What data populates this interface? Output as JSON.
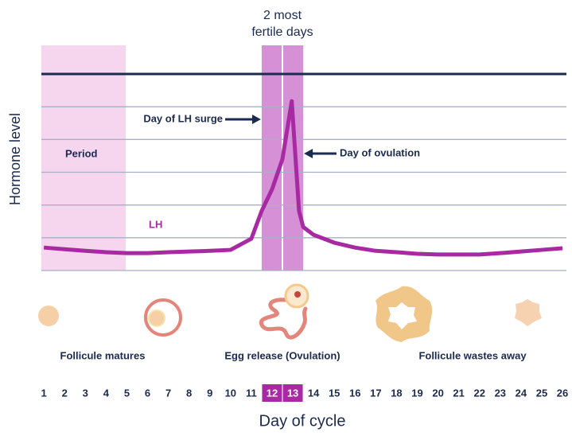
{
  "chart_data": {
    "type": "line",
    "x_axis_label": "Day of cycle",
    "y_axis_label": "Hormone level",
    "xlim": [
      0.88,
      26.19
    ],
    "xticks": [
      1,
      2,
      3,
      4,
      5,
      6,
      7,
      8,
      9,
      10,
      11,
      12,
      13,
      14,
      15,
      16,
      17,
      18,
      19,
      20,
      21,
      22,
      23,
      24,
      25,
      26
    ],
    "ylim": [
      0,
      6
    ],
    "yticks": [
      0,
      1,
      2,
      3,
      4,
      5,
      6
    ],
    "grid": true,
    "highlighted_ticks": [
      12,
      13
    ],
    "series": [
      {
        "name": "LH",
        "color": "#a72aa3",
        "x": [
          1,
          2,
          3,
          4,
          5,
          6,
          7,
          8,
          9,
          10,
          11,
          11.5,
          12,
          12.5,
          12.95,
          13.3,
          13.5,
          14,
          15,
          16,
          17,
          18,
          19,
          20,
          21,
          22,
          23,
          24,
          25,
          26
        ],
        "values": [
          0.7,
          0.65,
          0.6,
          0.56,
          0.53,
          0.53,
          0.56,
          0.58,
          0.6,
          0.63,
          0.97,
          1.82,
          2.48,
          3.4,
          5.17,
          1.82,
          1.33,
          1.09,
          0.85,
          0.7,
          0.6,
          0.56,
          0.51,
          0.49,
          0.49,
          0.49,
          0.53,
          0.58,
          0.63,
          0.68
        ]
      }
    ],
    "bands": [
      {
        "label": "Period",
        "range": [
          0.88,
          4.95
        ],
        "color": "#f6d5ee"
      },
      {
        "label": [
          "2 most",
          "fertile days"
        ],
        "range": [
          11.5,
          13.5
        ],
        "color": "#d590d6"
      }
    ],
    "annotations": [
      {
        "text": "Day of LH surge",
        "x": 11.5
      },
      {
        "text": "Day of ovulation",
        "x": 13.5
      }
    ],
    "stages": [
      "Follicule matures",
      "Egg release (Ovulation)",
      "Follicule wastes away"
    ]
  }
}
